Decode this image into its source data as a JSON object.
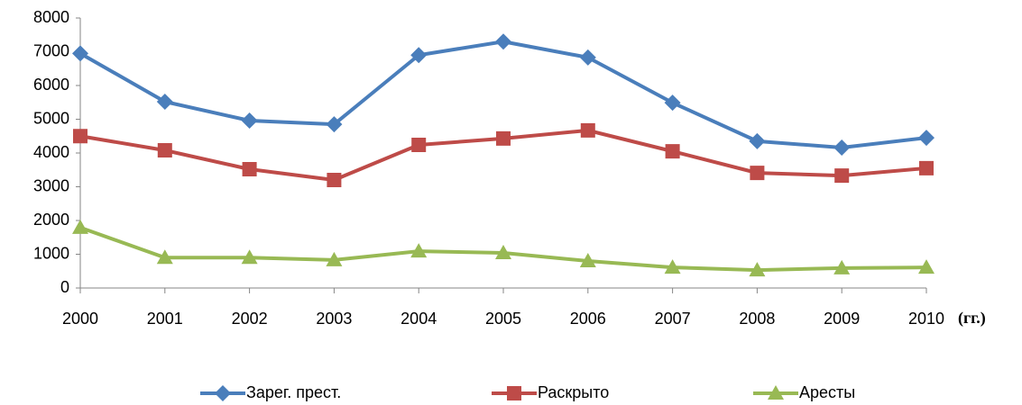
{
  "chart_data": {
    "type": "line",
    "x_label": "(гг.)",
    "categories": [
      "2000",
      "2001",
      "2002",
      "2003",
      "2004",
      "2005",
      "2006",
      "2007",
      "2008",
      "2009",
      "2010"
    ],
    "series": [
      {
        "name": "Зарег. прест.",
        "color": "#4a7ebb",
        "marker": "diamond",
        "values": [
          6950,
          5520,
          4960,
          4850,
          6900,
          7300,
          6830,
          5490,
          4350,
          4160,
          4450
        ]
      },
      {
        "name": "Раскрыто",
        "color": "#be4b48",
        "marker": "square",
        "values": [
          4500,
          4080,
          3520,
          3200,
          4240,
          4430,
          4670,
          4050,
          3410,
          3330,
          3550
        ]
      },
      {
        "name": "Аресты",
        "color": "#98b954",
        "marker": "triangle",
        "values": [
          1790,
          900,
          900,
          830,
          1090,
          1040,
          800,
          610,
          530,
          590,
          610
        ]
      }
    ],
    "ylim": [
      0,
      8000
    ],
    "yticks": [
      0,
      1000,
      2000,
      3000,
      4000,
      5000,
      6000,
      7000,
      8000
    ],
    "grid": false,
    "legend": "bottom"
  }
}
